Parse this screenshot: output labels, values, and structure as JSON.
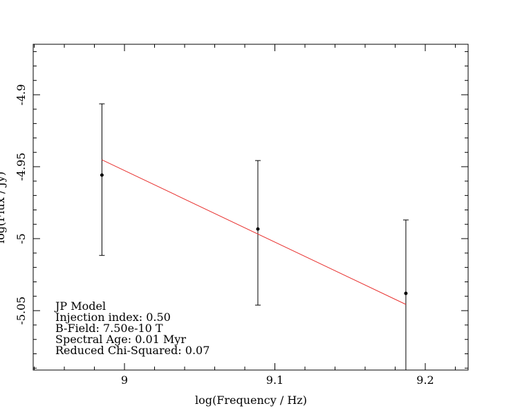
{
  "chart_data": {
    "type": "scatter",
    "x_label": "log(Frequency / Hz)",
    "y_label": "log(Flux / Jy)",
    "xlim": [
      8.9393,
      9.2285
    ],
    "ylim": [
      -5.0913,
      -4.8649
    ],
    "xticks": [
      9,
      9.1,
      9.2
    ],
    "yticks": [
      -4.9,
      -4.95,
      -5,
      -5.05
    ],
    "xminor": [
      8.94,
      8.96,
      8.98,
      9.02,
      9.04,
      9.06,
      9.08,
      9.12,
      9.14,
      9.16,
      9.18,
      9.22
    ],
    "yminor": [
      -4.87,
      -4.88,
      -4.89,
      -4.91,
      -4.92,
      -4.93,
      -4.94,
      -4.96,
      -4.97,
      -4.98,
      -4.99,
      -5.01,
      -5.02,
      -5.03,
      -5.04,
      -5.06,
      -5.07,
      -5.08,
      -5.09
    ],
    "series": [
      {
        "name": "data",
        "color": "#000000",
        "x": [
          8.985,
          9.0887,
          9.1871
        ],
        "values": [
          -4.9558,
          -4.9933,
          -5.038
        ],
        "error_plus": [
          0.0495,
          0.0476,
          0.051
        ],
        "error_minus": [
          0.0558,
          0.0529,
          0.0567
        ]
      },
      {
        "name": "fit",
        "color": "#e8312f",
        "x": [
          8.985,
          9.1871
        ],
        "values": [
          -4.9452,
          -5.0457
        ]
      }
    ],
    "annotations": [
      "JP Model",
      "Injection index: 0.50",
      "B-Field: 7.50e-10 T",
      "Spectral Age: 0.01 Myr",
      "Reduced Chi-Squared: 0.07"
    ]
  }
}
